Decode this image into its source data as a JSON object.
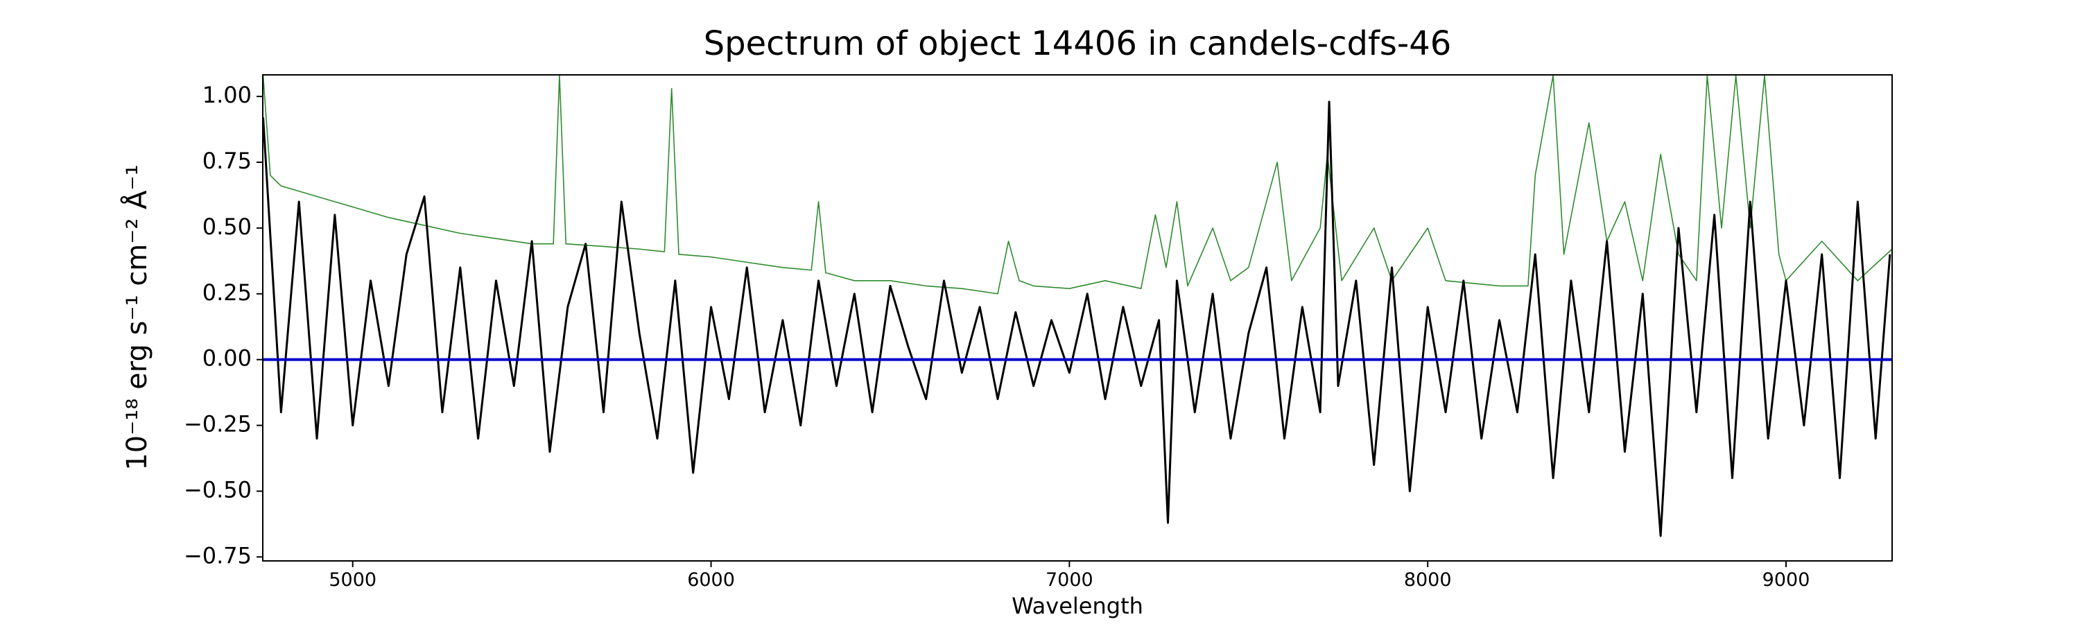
{
  "chart_data": {
    "type": "line",
    "title": "Spectrum of object 14406 in candels-cdfs-46",
    "x_label": "Wavelength",
    "y_label": "10⁻¹⁸ erg s⁻¹ cm⁻² Å⁻¹",
    "xlim": [
      4749,
      9296
    ],
    "ylim": [
      -0.765,
      1.082
    ],
    "xticks": [
      5000,
      6000,
      7000,
      8000,
      9000
    ],
    "yticks": [
      {
        "value": -0.75,
        "label": "−0.75"
      },
      {
        "value": -0.5,
        "label": "−0.50"
      },
      {
        "value": -0.25,
        "label": "−0.25"
      },
      {
        "value": 0,
        "label": "0.00"
      },
      {
        "value": 0.25,
        "label": "0.25"
      },
      {
        "value": 0.5,
        "label": "0.50"
      },
      {
        "value": 0.75,
        "label": "0.75"
      },
      {
        "value": 1,
        "label": "1.00"
      }
    ],
    "series": [
      {
        "color": "#2e8b2e",
        "width": 1.6,
        "x": [
          4750,
          4770,
          4800,
          4900,
          5000,
          5100,
          5200,
          5300,
          5400,
          5500,
          5560,
          5577,
          5595,
          5700,
          5800,
          5870,
          5890,
          5910,
          6000,
          6100,
          6200,
          6280,
          6300,
          6320,
          6400,
          6500,
          6600,
          6700,
          6800,
          6830,
          6860,
          6900,
          7000,
          7100,
          7200,
          7240,
          7270,
          7300,
          7330,
          7400,
          7450,
          7500,
          7580,
          7620,
          7700,
          7720,
          7760,
          7850,
          7900,
          8000,
          8050,
          8200,
          8280,
          8300,
          8350,
          8380,
          8450,
          8500,
          8550,
          8600,
          8650,
          8700,
          8750,
          8780,
          8820,
          8860,
          8900,
          8940,
          8980,
          9000,
          9100,
          9200,
          9296
        ],
        "values": [
          1.08,
          0.7,
          0.66,
          0.62,
          0.58,
          0.54,
          0.51,
          0.48,
          0.46,
          0.44,
          0.44,
          1.08,
          0.44,
          0.43,
          0.42,
          0.41,
          1.03,
          0.4,
          0.39,
          0.37,
          0.35,
          0.34,
          0.6,
          0.33,
          0.3,
          0.3,
          0.28,
          0.27,
          0.25,
          0.45,
          0.3,
          0.28,
          0.27,
          0.3,
          0.27,
          0.55,
          0.35,
          0.6,
          0.28,
          0.5,
          0.3,
          0.35,
          0.75,
          0.3,
          0.5,
          0.78,
          0.3,
          0.5,
          0.3,
          0.5,
          0.3,
          0.28,
          0.28,
          0.7,
          1.08,
          0.4,
          0.9,
          0.45,
          0.6,
          0.3,
          0.78,
          0.4,
          0.3,
          1.08,
          0.5,
          1.08,
          0.5,
          1.08,
          0.4,
          0.3,
          0.45,
          0.3,
          0.42
        ]
      },
      {
        "color": "#000000",
        "width": 3,
        "x": [
          4750,
          4800,
          4850,
          4900,
          4950,
          5000,
          5050,
          5100,
          5150,
          5200,
          5250,
          5300,
          5350,
          5400,
          5450,
          5500,
          5550,
          5600,
          5650,
          5700,
          5750,
          5800,
          5850,
          5900,
          5950,
          6000,
          6050,
          6100,
          6150,
          6200,
          6250,
          6300,
          6350,
          6400,
          6450,
          6500,
          6550,
          6600,
          6650,
          6700,
          6750,
          6800,
          6850,
          6900,
          6950,
          7000,
          7050,
          7100,
          7150,
          7200,
          7250,
          7275,
          7300,
          7350,
          7400,
          7450,
          7500,
          7550,
          7600,
          7650,
          7700,
          7725,
          7750,
          7800,
          7850,
          7900,
          7950,
          8000,
          8050,
          8100,
          8150,
          8200,
          8250,
          8300,
          8350,
          8400,
          8450,
          8500,
          8550,
          8600,
          8650,
          8700,
          8750,
          8800,
          8850,
          8900,
          8950,
          9000,
          9050,
          9100,
          9150,
          9200,
          9250,
          9290
        ],
        "values": [
          0.92,
          -0.2,
          0.6,
          -0.3,
          0.55,
          -0.25,
          0.3,
          -0.1,
          0.4,
          0.62,
          -0.2,
          0.35,
          -0.3,
          0.3,
          -0.1,
          0.45,
          -0.35,
          0.2,
          0.44,
          -0.2,
          0.6,
          0.1,
          -0.3,
          0.3,
          -0.43,
          0.2,
          -0.15,
          0.35,
          -0.2,
          0.15,
          -0.25,
          0.3,
          -0.1,
          0.25,
          -0.2,
          0.28,
          0.05,
          -0.15,
          0.3,
          -0.05,
          0.2,
          -0.15,
          0.18,
          -0.1,
          0.15,
          -0.05,
          0.25,
          -0.15,
          0.2,
          -0.1,
          0.15,
          -0.62,
          0.3,
          -0.2,
          0.25,
          -0.3,
          0.1,
          0.35,
          -0.3,
          0.2,
          -0.2,
          0.98,
          -0.1,
          0.3,
          -0.4,
          0.35,
          -0.5,
          0.2,
          -0.2,
          0.3,
          -0.3,
          0.15,
          -0.2,
          0.4,
          -0.45,
          0.3,
          -0.2,
          0.45,
          -0.35,
          0.25,
          -0.67,
          0.5,
          -0.2,
          0.55,
          -0.45,
          0.6,
          -0.3,
          0.3,
          -0.25,
          0.4,
          -0.45,
          0.6,
          -0.3,
          0.4
        ]
      },
      {
        "color": "#0000cc",
        "width": 4,
        "x": [
          4749,
          9296
        ],
        "values": [
          0,
          0
        ]
      }
    ]
  }
}
